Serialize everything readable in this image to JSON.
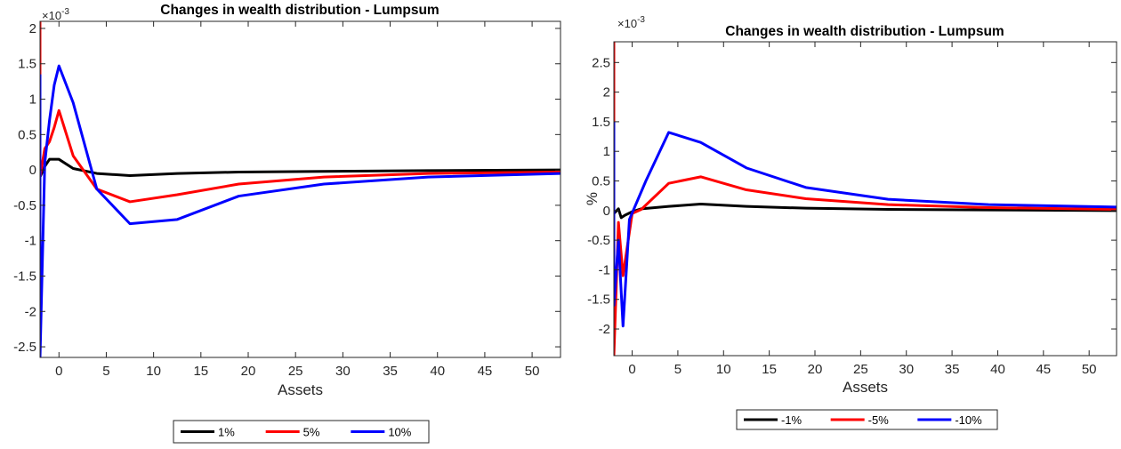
{
  "chart_data": [
    {
      "type": "line",
      "title": "Changes in wealth distribution - Lumpsum",
      "xlabel": "Assets",
      "ylabel": "",
      "y_multiplier": "×10-3",
      "xlim": [
        -2,
        53
      ],
      "ylim": [
        -2.65,
        2.1
      ],
      "xticks": [
        0,
        5,
        10,
        15,
        20,
        25,
        30,
        35,
        40,
        45,
        50
      ],
      "yticks": [
        -2.5,
        -2,
        -1.5,
        -1,
        -0.5,
        0,
        0.5,
        1,
        1.5,
        2
      ],
      "ytick_labels": [
        "-2.5",
        "-2",
        "-1.5",
        "-1",
        "-0.5",
        "0",
        "0.5",
        "1",
        "1.5",
        "2"
      ],
      "xtick_labels": [
        "0",
        "5",
        "10",
        "15",
        "20",
        "25",
        "30",
        "35",
        "40",
        "45",
        "50"
      ],
      "grid": false,
      "legend_position": "bottom",
      "series": [
        {
          "name": "1%",
          "color": "#000000",
          "x": [
            -2,
            -1.5,
            -1,
            -0.5,
            0,
            1.5,
            4,
            7.5,
            12.5,
            19,
            28,
            39,
            53
          ],
          "y": [
            -0.1,
            0.05,
            0.15,
            0.15,
            0.15,
            0.02,
            -0.05,
            -0.08,
            -0.05,
            -0.03,
            -0.02,
            -0.01,
            0
          ]
        },
        {
          "name": "5%",
          "color": "#ff0000",
          "x": [
            -2,
            -2,
            -1.5,
            -1,
            -0.5,
            0,
            1.5,
            4,
            7.5,
            12.5,
            19,
            28,
            39,
            53
          ],
          "y": [
            2.1,
            -0.1,
            0.3,
            0.4,
            0.6,
            0.84,
            0.2,
            -0.27,
            -0.45,
            -0.35,
            -0.2,
            -0.1,
            -0.05,
            -0.03
          ]
        },
        {
          "name": "10%",
          "color": "#0000ff",
          "x": [
            -2,
            -2,
            -1.5,
            -1,
            -0.5,
            0,
            1.5,
            4,
            7.5,
            12.5,
            19,
            28,
            39,
            53
          ],
          "y": [
            1.35,
            -2.65,
            0.1,
            0.7,
            1.2,
            1.47,
            0.95,
            -0.27,
            -0.76,
            -0.7,
            -0.37,
            -0.2,
            -0.1,
            -0.05
          ]
        }
      ]
    },
    {
      "type": "line",
      "title": "Changes in wealth distribution - Lumpsum",
      "xlabel": "Assets",
      "ylabel": "%",
      "y_multiplier": "×10-3",
      "xlim": [
        -2,
        53
      ],
      "ylim": [
        -2.45,
        2.85
      ],
      "xticks": [
        0,
        5,
        10,
        15,
        20,
        25,
        30,
        35,
        40,
        45,
        50
      ],
      "yticks": [
        -2,
        -1.5,
        -1,
        -0.5,
        0,
        0.5,
        1,
        1.5,
        2,
        2.5
      ],
      "ytick_labels": [
        "-2",
        "-1.5",
        "-1",
        "-0.5",
        "0",
        "0.5",
        "1",
        "1.5",
        "2",
        "2.5"
      ],
      "xtick_labels": [
        "0",
        "5",
        "10",
        "15",
        "20",
        "25",
        "30",
        "35",
        "40",
        "45",
        "50"
      ],
      "grid": false,
      "legend_position": "bottom",
      "series": [
        {
          "name": "-1%",
          "color": "#000000",
          "x": [
            -2,
            -1.5,
            -1.2,
            -0.8,
            0,
            1,
            4,
            7.5,
            12.5,
            19,
            28,
            39,
            53
          ],
          "y": [
            -0.05,
            0.03,
            -0.12,
            -0.08,
            -0.02,
            0.03,
            0.07,
            0.11,
            0.07,
            0.04,
            0.02,
            0.01,
            0
          ]
        },
        {
          "name": "-5%",
          "color": "#ff0000",
          "x": [
            -2,
            -2,
            -1.5,
            -1,
            0,
            1,
            4,
            7.5,
            12.5,
            19,
            28,
            39,
            53
          ],
          "y": [
            2.85,
            -2.45,
            -0.2,
            -1.1,
            -0.05,
            0.02,
            0.46,
            0.57,
            0.35,
            0.2,
            0.1,
            0.05,
            0.02
          ]
        },
        {
          "name": "-10%",
          "color": "#0000ff",
          "x": [
            -2,
            -2,
            -1.5,
            -1,
            -0.3,
            1.5,
            4,
            7.5,
            12.5,
            19,
            28,
            39,
            53
          ],
          "y": [
            1.5,
            -1.6,
            -0.5,
            -1.95,
            -0.15,
            0.5,
            1.32,
            1.15,
            0.72,
            0.39,
            0.19,
            0.1,
            0.06
          ]
        }
      ]
    }
  ]
}
